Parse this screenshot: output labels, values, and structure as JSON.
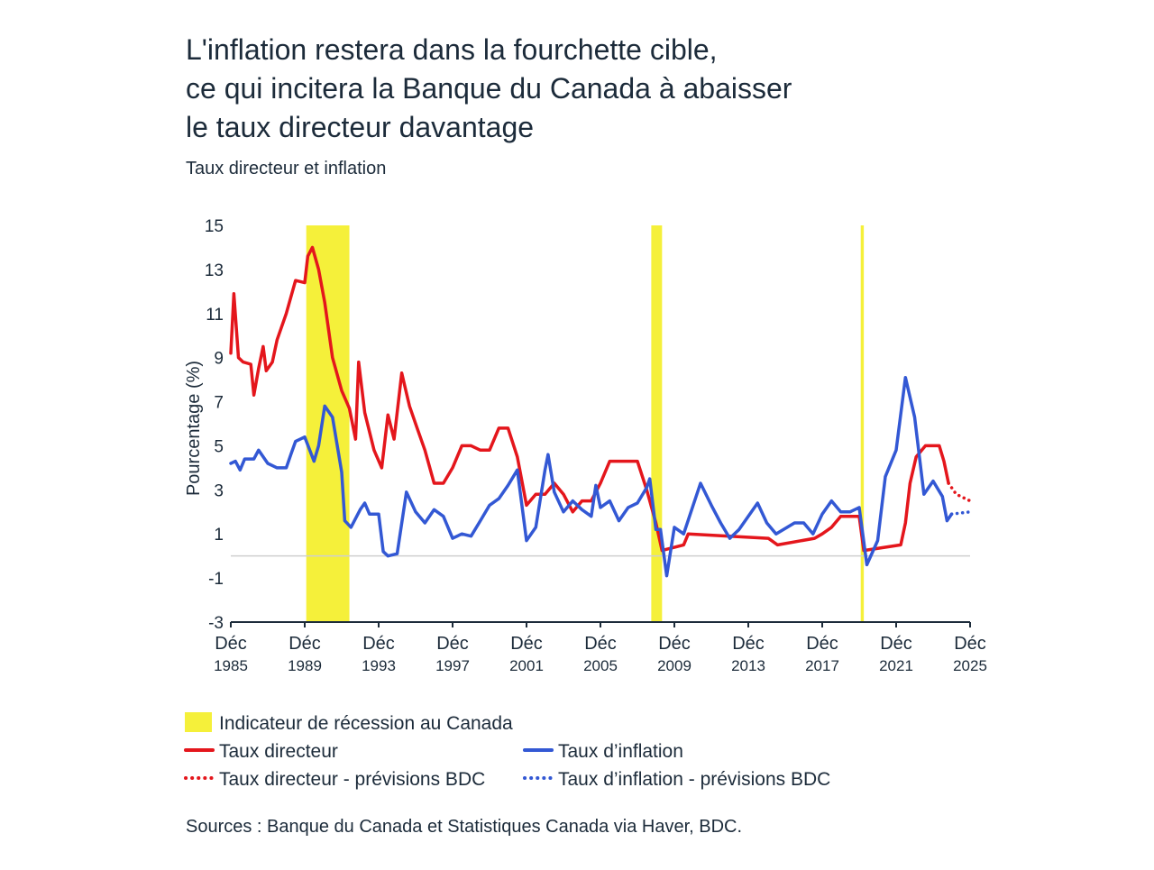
{
  "chart_data": {
    "type": "line",
    "title": [
      "L'inflation restera dans la fourchette cible,",
      "ce qui incitera la Banque du Canada à abaisser",
      "le taux directeur davantage"
    ],
    "subtitle": "Taux directeur et inflation",
    "y_label": "Pourcentage (%)",
    "source": "Sources : Banque du Canada et Statistiques Canada via Haver, BDC.",
    "xlim": [
      "1985-12",
      "2025-12"
    ],
    "xticks": [
      {
        "value": "1985-12",
        "label": "Déc 1985"
      },
      {
        "value": "1989-12",
        "label": "Déc 1989"
      },
      {
        "value": "1993-12",
        "label": "Déc 1993"
      },
      {
        "value": "1997-12",
        "label": "Déc 1997"
      },
      {
        "value": "2001-12",
        "label": "Déc 2001"
      },
      {
        "value": "2005-12",
        "label": "Déc 2005"
      },
      {
        "value": "2009-12",
        "label": "Déc 2009"
      },
      {
        "value": "2013-12",
        "label": "Déc 2013"
      },
      {
        "value": "2017-12",
        "label": "Déc 2017"
      },
      {
        "value": "2021-12",
        "label": "Déc 2021"
      },
      {
        "value": "2025-12",
        "label": "Déc 2025"
      }
    ],
    "ylim": [
      -3,
      15
    ],
    "yticks": [
      -3,
      -1,
      1,
      3,
      5,
      7,
      9,
      11,
      13,
      15
    ],
    "zero_line": true,
    "recessions": {
      "name": "Indicateur de récession au Canada",
      "color": "#f5f03a",
      "periods": [
        [
          "1990-01",
          "1992-05"
        ],
        [
          "2008-09",
          "2009-04"
        ],
        [
          "2020-01",
          "2020-03"
        ]
      ]
    },
    "series": [
      {
        "name": "Taux directeur",
        "color": "#e4161c",
        "style": "solid",
        "x": [
          "1985-12",
          "1986-02",
          "1986-05",
          "1986-08",
          "1987-01",
          "1987-03",
          "1987-06",
          "1987-09",
          "1987-11",
          "1988-03",
          "1988-06",
          "1988-12",
          "1989-06",
          "1989-12",
          "1990-02",
          "1990-05",
          "1990-09",
          "1991-01",
          "1991-06",
          "1991-12",
          "1992-05",
          "1992-09",
          "1992-11",
          "1993-03",
          "1993-09",
          "1994-02",
          "1994-06",
          "1994-10",
          "1995-03",
          "1995-08",
          "1996-01",
          "1996-06",
          "1996-12",
          "1997-06",
          "1997-12",
          "1998-06",
          "1998-12",
          "1999-06",
          "1999-12",
          "2000-06",
          "2000-12",
          "2001-06",
          "2001-12",
          "2002-06",
          "2002-12",
          "2003-06",
          "2003-12",
          "2004-06",
          "2004-12",
          "2005-06",
          "2005-12",
          "2006-06",
          "2007-06",
          "2007-12",
          "2008-06",
          "2008-12",
          "2009-04",
          "2010-06",
          "2010-09",
          "2015-01",
          "2015-07",
          "2017-07",
          "2017-12",
          "2018-06",
          "2018-12",
          "2019-12",
          "2020-03",
          "2022-03",
          "2022-06",
          "2022-09",
          "2023-01",
          "2023-07",
          "2024-04",
          "2024-07",
          "2024-10"
        ],
        "values": [
          9.2,
          11.9,
          9.0,
          8.8,
          8.7,
          7.3,
          8.5,
          9.5,
          8.4,
          8.8,
          9.8,
          11.0,
          12.5,
          12.4,
          13.6,
          14.0,
          13.0,
          11.5,
          9.0,
          7.5,
          6.7,
          5.3,
          8.8,
          6.5,
          4.8,
          4.0,
          6.4,
          5.3,
          8.3,
          6.8,
          5.8,
          4.8,
          3.3,
          3.3,
          4.0,
          5.0,
          5.0,
          4.8,
          4.8,
          5.8,
          5.8,
          4.5,
          2.3,
          2.8,
          2.8,
          3.3,
          2.8,
          2.0,
          2.5,
          2.5,
          3.3,
          4.3,
          4.3,
          4.3,
          3.0,
          1.5,
          0.25,
          0.5,
          1.0,
          0.8,
          0.5,
          0.8,
          1.0,
          1.3,
          1.8,
          1.8,
          0.25,
          0.5,
          1.5,
          3.3,
          4.5,
          5.0,
          5.0,
          4.3,
          3.3
        ]
      },
      {
        "name": "Taux d’inflation",
        "color": "#3358d4",
        "style": "solid",
        "x": [
          "1985-12",
          "1986-03",
          "1986-06",
          "1986-09",
          "1987-03",
          "1987-06",
          "1987-12",
          "1988-06",
          "1988-12",
          "1989-03",
          "1989-06",
          "1989-12",
          "1990-06",
          "1990-09",
          "1991-01",
          "1991-06",
          "1991-12",
          "1992-02",
          "1992-06",
          "1992-12",
          "1993-03",
          "1993-06",
          "1993-12",
          "1994-03",
          "1994-06",
          "1994-12",
          "1995-06",
          "1995-12",
          "1996-06",
          "1996-12",
          "1997-06",
          "1997-12",
          "1998-06",
          "1998-12",
          "1999-06",
          "1999-12",
          "2000-06",
          "2000-12",
          "2001-06",
          "2001-12",
          "2002-06",
          "2002-12",
          "2003-02",
          "2003-06",
          "2003-12",
          "2004-06",
          "2004-12",
          "2005-06",
          "2005-09",
          "2005-12",
          "2006-06",
          "2006-12",
          "2007-06",
          "2007-12",
          "2008-06",
          "2008-08",
          "2008-12",
          "2009-03",
          "2009-07",
          "2009-12",
          "2010-06",
          "2011-05",
          "2011-12",
          "2012-06",
          "2012-12",
          "2013-06",
          "2014-06",
          "2014-12",
          "2015-06",
          "2016-06",
          "2016-12",
          "2017-06",
          "2017-12",
          "2018-06",
          "2018-12",
          "2019-06",
          "2019-12",
          "2020-05",
          "2020-12",
          "2021-05",
          "2021-12",
          "2022-06",
          "2022-12",
          "2023-06",
          "2023-12",
          "2024-06",
          "2024-09",
          "2024-12"
        ],
        "values": [
          4.2,
          4.3,
          3.9,
          4.4,
          4.4,
          4.8,
          4.2,
          4.0,
          4.0,
          4.6,
          5.2,
          5.4,
          4.3,
          5.0,
          6.8,
          6.3,
          3.8,
          1.6,
          1.3,
          2.1,
          2.4,
          1.9,
          1.9,
          0.2,
          0,
          0.1,
          2.9,
          2.0,
          1.5,
          2.1,
          1.8,
          0.8,
          1.0,
          0.9,
          1.6,
          2.3,
          2.6,
          3.2,
          3.9,
          0.7,
          1.3,
          3.9,
          4.6,
          2.9,
          2.0,
          2.5,
          2.1,
          1.8,
          3.2,
          2.2,
          2.5,
          1.6,
          2.2,
          2.4,
          3.1,
          3.5,
          1.2,
          1.2,
          -0.9,
          1.3,
          1.0,
          3.3,
          2.3,
          1.5,
          0.8,
          1.2,
          2.4,
          1.5,
          1.0,
          1.5,
          1.5,
          1.0,
          1.9,
          2.5,
          2.0,
          2.0,
          2.2,
          -0.4,
          0.7,
          3.6,
          4.8,
          8.1,
          6.3,
          2.8,
          3.4,
          2.7,
          1.6,
          1.9
        ]
      },
      {
        "name": "Taux directeur - prévisions BDC",
        "color": "#e4161c",
        "style": "dotted",
        "x": [
          "2024-10",
          "2025-03",
          "2025-12"
        ],
        "values": [
          3.3,
          2.8,
          2.5
        ]
      },
      {
        "name": "Taux d’inflation - prévisions BDC",
        "color": "#3358d4",
        "style": "dotted",
        "x": [
          "2024-12",
          "2025-12"
        ],
        "values": [
          1.9,
          2.0
        ]
      }
    ]
  }
}
